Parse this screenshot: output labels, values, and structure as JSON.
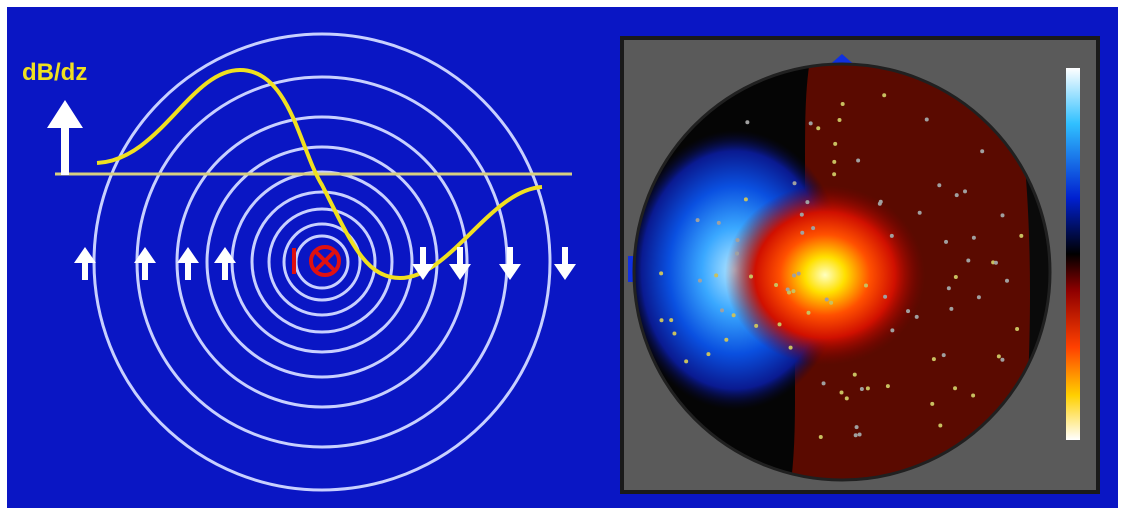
{
  "label": "dB/dz"
}
